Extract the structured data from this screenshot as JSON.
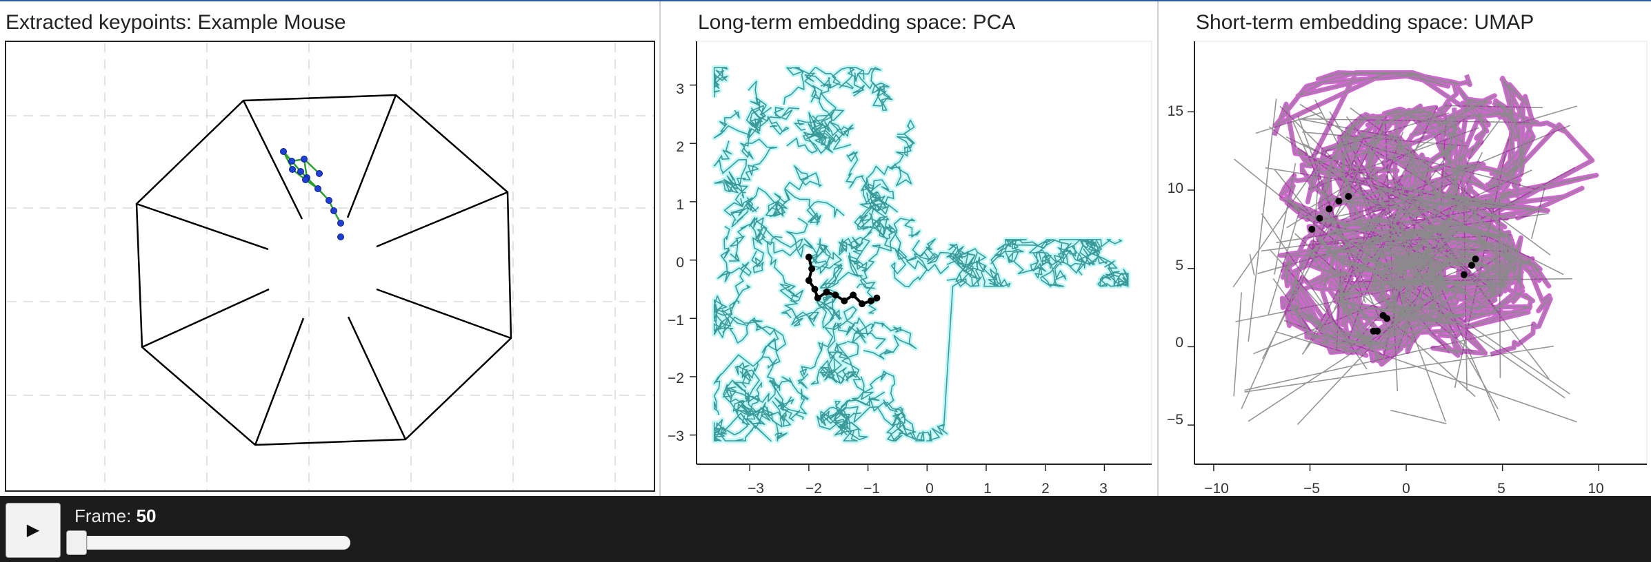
{
  "panels": {
    "keypoints": {
      "title": "Extracted keypoints: Example Mouse",
      "colors": {
        "skeleton": "#2ca02c",
        "keypoint": "#1f3fd6",
        "arena": "#000000"
      }
    },
    "pca": {
      "title": "Long-term embedding space: PCA",
      "x_ticks": [
        "−3",
        "−2",
        "−1",
        "0",
        "1",
        "2",
        "3"
      ],
      "y_ticks": [
        "3",
        "2",
        "1",
        "0",
        "−1",
        "−2",
        "−3"
      ],
      "colors": {
        "trace": "#3a9a9a",
        "glow": "#8ff0f0",
        "current": "#000000"
      }
    },
    "umap": {
      "title": "Short-term embedding space: UMAP",
      "x_ticks": [
        "−10",
        "−5",
        "0",
        "5",
        "10"
      ],
      "y_ticks": [
        "15",
        "10",
        "5",
        "0",
        "−5"
      ],
      "colors": {
        "trace": "#8a8a8a",
        "glow": "#b000b0",
        "current": "#000000"
      }
    }
  },
  "controls": {
    "play_icon": "play-icon",
    "play_glyph": "▶",
    "frame_label": "Frame:",
    "frame_value": "50",
    "slider_fraction": 0.0
  },
  "chart_data": [
    {
      "type": "line",
      "title": "Long-term embedding space: PCA",
      "xlim": [
        -3.9,
        3.8
      ],
      "ylim": [
        -3.5,
        3.75
      ],
      "x_ticks": [
        -3,
        -2,
        -1,
        0,
        1,
        2,
        3
      ],
      "y_ticks": [
        -3,
        -2,
        -1,
        0,
        1,
        2,
        3
      ],
      "highlighted_trajectory": {
        "x": [
          -2.0,
          -1.95,
          -2.0,
          -1.9,
          -1.85,
          -1.7,
          -1.55,
          -1.4,
          -1.25,
          -1.1,
          -0.95,
          -0.85
        ],
        "y": [
          0.05,
          -0.15,
          -0.35,
          -0.5,
          -0.65,
          -0.55,
          -0.6,
          -0.7,
          -0.6,
          -0.75,
          -0.7,
          -0.65
        ]
      }
    },
    {
      "type": "line",
      "title": "Short-term embedding space: UMAP",
      "xlim": [
        -11,
        12.5
      ],
      "ylim": [
        -7.5,
        19.5
      ],
      "x_ticks": [
        -10,
        -5,
        0,
        5,
        10
      ],
      "y_ticks": [
        -5,
        0,
        5,
        10,
        15
      ],
      "highlighted_trajectory": {
        "x": [
          -4.9,
          -4.5,
          -4.0,
          -3.5,
          -3.0,
          -1.5,
          -1.0,
          3.0,
          3.4,
          3.6,
          -1.7,
          -1.2
        ],
        "y": [
          7.5,
          8.2,
          8.8,
          9.3,
          9.6,
          1.0,
          1.8,
          4.6,
          5.2,
          5.6,
          1.0,
          2.0
        ]
      }
    }
  ]
}
